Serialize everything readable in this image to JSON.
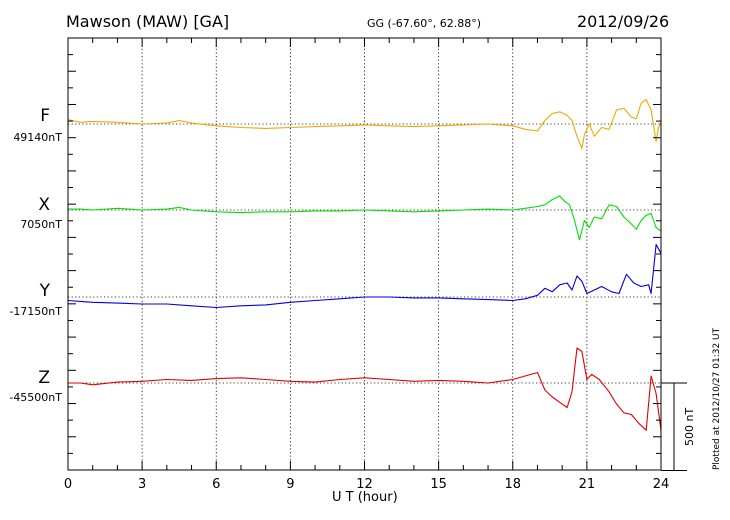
{
  "header": {
    "station": "Mawson (MAW)  [GA]",
    "coords": "GG (-67.60°,  62.88°)",
    "date": "2012/09/26"
  },
  "footer_note": "Plotted at 2012/10/27 01:32 UT",
  "scale_bar": {
    "label": "500 nT",
    "value_nT": 500
  },
  "chart_data": {
    "type": "line",
    "xlabel": "U T (hour)",
    "xlim": [
      0,
      24
    ],
    "xticks": [
      0,
      3,
      6,
      9,
      12,
      15,
      18,
      21,
      24
    ],
    "tick_labels": [
      "0",
      "3",
      "6",
      "9",
      "12",
      "15",
      "18",
      "21",
      "24"
    ],
    "grid": "dotted vertical lines every 3 hours",
    "units": "nT",
    "series": [
      {
        "name": "F",
        "baseline_label": "49140nT",
        "baseline_nT": 49140,
        "color": "#f0a800",
        "x": [
          0,
          0.5,
          1,
          2,
          3,
          4,
          4.5,
          5,
          6,
          7,
          8,
          9,
          10,
          11,
          12,
          13,
          14,
          15,
          16,
          17,
          18,
          18.5,
          19,
          19.3,
          19.6,
          19.9,
          20.2,
          20.4,
          20.6,
          20.8,
          20.9,
          21.1,
          21.3,
          21.6,
          21.9,
          22.2,
          22.5,
          22.8,
          23.0,
          23.2,
          23.4,
          23.6,
          23.8,
          23.9,
          24
        ],
        "y": [
          25,
          10,
          15,
          10,
          0,
          5,
          20,
          5,
          -10,
          -20,
          -25,
          -20,
          -15,
          -10,
          -5,
          -10,
          -15,
          -10,
          -5,
          0,
          -10,
          -30,
          -40,
          20,
          60,
          70,
          50,
          20,
          -70,
          -140,
          -60,
          0,
          -70,
          -20,
          -30,
          80,
          90,
          40,
          30,
          120,
          140,
          80,
          -100,
          -20,
          10
        ]
      },
      {
        "name": "X",
        "baseline_label": "7050nT",
        "baseline_nT": 7050,
        "color": "#00e000",
        "x": [
          0,
          0.5,
          1,
          2,
          3,
          4,
          4.5,
          5,
          6,
          7,
          8,
          9,
          10,
          11,
          12,
          13,
          14,
          15,
          16,
          17,
          18,
          18.5,
          19,
          19.3,
          19.6,
          19.9,
          20.1,
          20.3,
          20.5,
          20.7,
          20.9,
          21.1,
          21.3,
          21.6,
          21.9,
          22.2,
          22.5,
          22.8,
          23.0,
          23.2,
          23.4,
          23.6,
          23.8,
          24
        ],
        "y": [
          5,
          5,
          0,
          10,
          0,
          5,
          15,
          0,
          -10,
          -15,
          -10,
          -10,
          -5,
          -5,
          0,
          -5,
          -10,
          -5,
          0,
          5,
          0,
          10,
          20,
          30,
          60,
          80,
          50,
          30,
          -60,
          -170,
          -60,
          -100,
          -40,
          -50,
          30,
          20,
          -40,
          -80,
          -110,
          -60,
          -30,
          -20,
          -100,
          -120
        ]
      },
      {
        "name": "Y",
        "baseline_label": "-17150nT",
        "baseline_nT": -17150,
        "color": "#0000e0",
        "x": [
          0,
          0.5,
          1,
          2,
          3,
          4,
          5,
          6,
          7,
          8,
          9,
          10,
          11,
          12,
          13,
          14,
          15,
          16,
          17,
          18,
          18.5,
          19,
          19.3,
          19.6,
          19.9,
          20.2,
          20.4,
          20.6,
          20.8,
          21.0,
          21.3,
          21.6,
          22.0,
          22.3,
          22.6,
          22.9,
          23.2,
          23.5,
          23.6,
          23.8,
          24
        ],
        "y": [
          -20,
          -25,
          -30,
          -35,
          -40,
          -40,
          -50,
          -60,
          -50,
          -45,
          -30,
          -20,
          -10,
          0,
          0,
          -5,
          -5,
          -10,
          -15,
          -20,
          -10,
          10,
          50,
          30,
          70,
          80,
          40,
          120,
          90,
          20,
          40,
          60,
          30,
          20,
          130,
          80,
          60,
          70,
          20,
          300,
          250
        ]
      },
      {
        "name": "Z",
        "baseline_label": "-45500nT",
        "baseline_nT": -45500,
        "color": "#e00000",
        "x": [
          0,
          0.5,
          1,
          2,
          3,
          4,
          5,
          6,
          7,
          8,
          9,
          10,
          11,
          12,
          13,
          14,
          15,
          16,
          17,
          18,
          18.5,
          19,
          19.3,
          19.6,
          19.9,
          20.2,
          20.4,
          20.6,
          20.8,
          21.0,
          21.2,
          21.5,
          21.9,
          22.2,
          22.5,
          22.8,
          23.1,
          23.4,
          23.6,
          23.8,
          24
        ],
        "y": [
          0,
          0,
          -10,
          5,
          10,
          20,
          15,
          25,
          30,
          20,
          10,
          5,
          20,
          30,
          20,
          10,
          15,
          10,
          0,
          20,
          40,
          60,
          -40,
          -80,
          -110,
          -140,
          -50,
          200,
          180,
          20,
          50,
          20,
          -50,
          -120,
          -170,
          -180,
          -230,
          -270,
          40,
          -60,
          -270
        ]
      }
    ]
  }
}
